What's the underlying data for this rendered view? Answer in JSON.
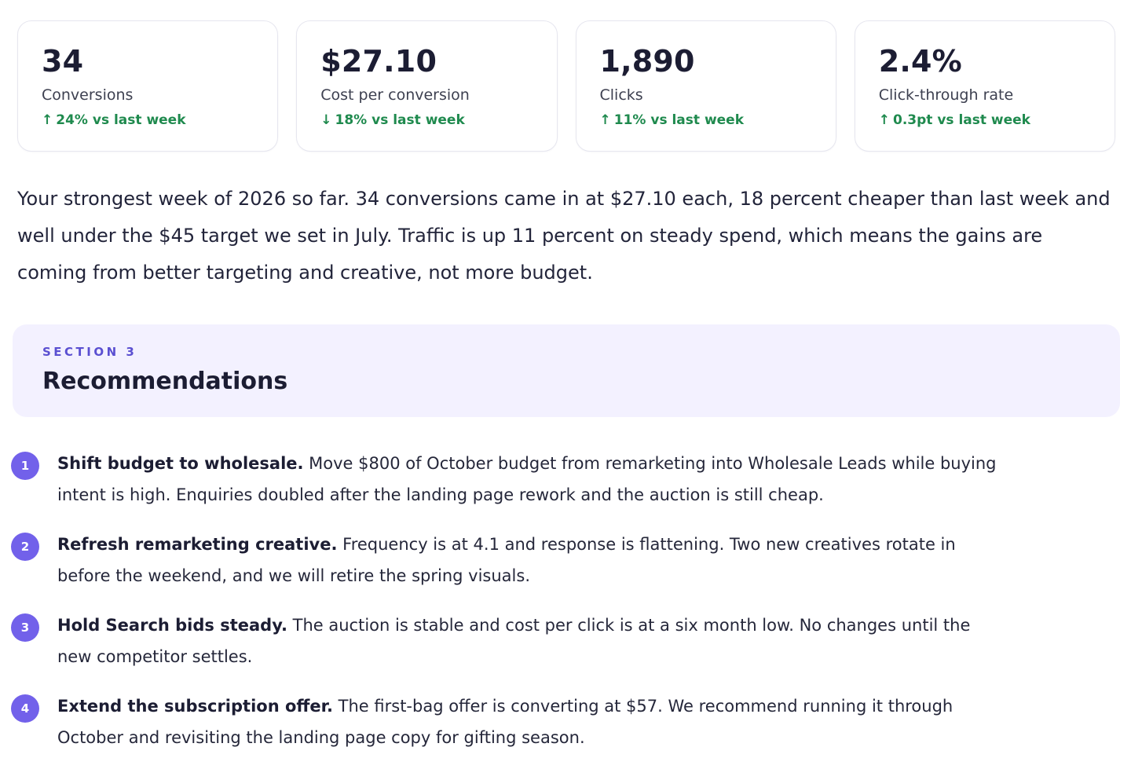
{
  "kpis": [
    {
      "value": "34",
      "label": "Conversions",
      "arrow": "↑",
      "delta": "24% vs last week"
    },
    {
      "value": "$27.10",
      "label": "Cost per conversion",
      "arrow": "↓",
      "delta": "18% vs last week"
    },
    {
      "value": "1,890",
      "label": "Clicks",
      "arrow": "↑",
      "delta": "11% vs last week"
    },
    {
      "value": "2.4%",
      "label": "Click-through rate",
      "arrow": "↑",
      "delta": "0.3pt vs last week"
    }
  ],
  "summary": "Your strongest week of 2026 so far. 34 conversions came in at $27.10 each, 18 percent cheaper than last week and well under the $45 target we set in July. Traffic is up 11 percent on steady spend, which means the gains are coming from better targeting and creative, not more budget.",
  "section": {
    "eyebrow": "SECTION 3",
    "title": "Recommendations"
  },
  "recommendations": [
    {
      "number": "1",
      "title": "Shift budget to wholesale.",
      "body": " Move $800 of October budget from remarketing into Wholesale Leads while buying intent is high. Enquiries doubled after the landing page rework and the auction is still cheap."
    },
    {
      "number": "2",
      "title": "Refresh remarketing creative.",
      "body": " Frequency is at 4.1 and response is flattening. Two new creatives rotate in before the weekend, and we will retire the spring visuals."
    },
    {
      "number": "3",
      "title": "Hold Search bids steady.",
      "body": " The auction is stable and cost per click is at a six month low. No changes until the new competitor settles."
    },
    {
      "number": "4",
      "title": "Extend the subscription offer.",
      "body": " The first-bag offer is converting at $57. We recommend running it through October and revisiting the landing page copy for gifting season."
    }
  ],
  "colors": {
    "positive": "#1f8a4e",
    "accent": "#7261ea",
    "section_bg": "#f3f1ff"
  }
}
